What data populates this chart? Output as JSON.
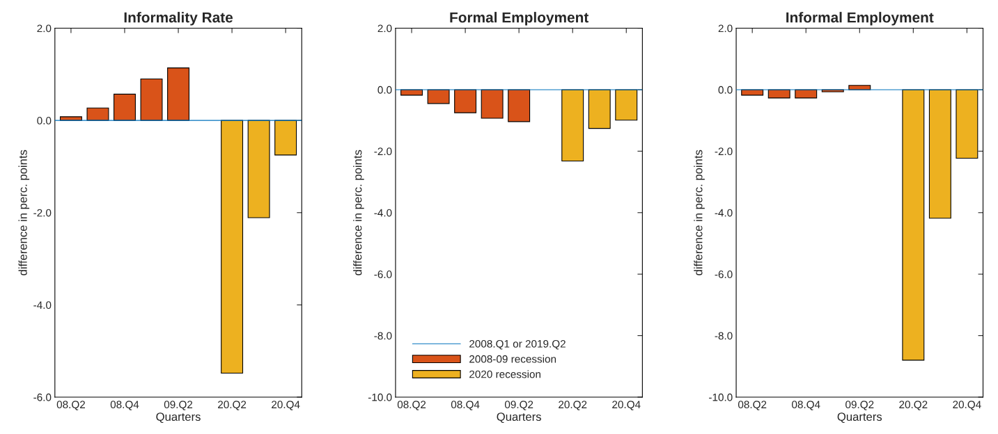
{
  "chart_data": [
    {
      "type": "bar",
      "title": "Informality Rate",
      "xlabel": "Quarters",
      "ylabel": "difference in perc. points",
      "categories": [
        "08.Q2",
        null,
        "08.Q4",
        null,
        "09.Q2",
        null,
        "20.Q2",
        null,
        "20.Q4"
      ],
      "series": [
        {
          "color": "#d95319",
          "values": [
            0.08,
            0.27,
            0.57,
            0.9,
            1.14,
            null,
            null,
            null,
            null
          ]
        },
        {
          "color": "#edb120",
          "values": [
            null,
            null,
            null,
            null,
            null,
            null,
            -5.48,
            -2.11,
            -0.75
          ]
        }
      ],
      "ref_lines": [
        {
          "axis": "y",
          "value": 0,
          "color": "#0072bd"
        }
      ],
      "ylim": [
        -6,
        2
      ],
      "yticks": [
        {
          "value": -6,
          "label": "-6.0"
        },
        {
          "value": -4,
          "label": "-4.0"
        },
        {
          "value": -2,
          "label": "-2.0"
        },
        {
          "value": 0,
          "label": "0.0"
        },
        {
          "value": 2,
          "label": "2.0"
        }
      ]
    },
    {
      "type": "bar",
      "title": "Formal Employment",
      "xlabel": "Quarters",
      "ylabel": "difference in perc. points",
      "categories": [
        "08.Q2",
        null,
        "08.Q4",
        null,
        "09.Q2",
        null,
        "20.Q2",
        null,
        "20.Q4"
      ],
      "series": [
        {
          "name": "2008-09 recession",
          "color": "#d95319",
          "values": [
            -0.18,
            -0.45,
            -0.75,
            -0.93,
            -1.04,
            null,
            null,
            null,
            null
          ]
        },
        {
          "name": "2020 recession",
          "color": "#edb120",
          "values": [
            null,
            null,
            null,
            null,
            null,
            null,
            -2.32,
            -1.26,
            -0.99
          ]
        }
      ],
      "ref_lines": [
        {
          "axis": "y",
          "value": 0,
          "label": "2008.Q1 or 2019.Q2",
          "color": "#0072bd"
        }
      ],
      "legend": "bottom left",
      "ylim": [
        -10,
        2
      ],
      "yticks": [
        {
          "value": -10,
          "label": "-10.0"
        },
        {
          "value": -8,
          "label": "-8.0"
        },
        {
          "value": -6,
          "label": "-6.0"
        },
        {
          "value": -4,
          "label": "-4.0"
        },
        {
          "value": -2,
          "label": "-2.0"
        },
        {
          "value": 0,
          "label": "0.0"
        },
        {
          "value": 2,
          "label": "2.0"
        }
      ]
    },
    {
      "type": "bar",
      "title": "Informal Employment",
      "xlabel": "Quarters",
      "ylabel": "difference in perc. points",
      "categories": [
        "08.Q2",
        null,
        "08.Q4",
        null,
        "09.Q2",
        null,
        "20.Q2",
        null,
        "20.Q4"
      ],
      "series": [
        {
          "color": "#d95319",
          "values": [
            -0.18,
            -0.27,
            -0.27,
            -0.07,
            0.14,
            null,
            null,
            null,
            null
          ]
        },
        {
          "color": "#edb120",
          "values": [
            null,
            null,
            null,
            null,
            null,
            null,
            -8.8,
            -4.18,
            -2.23
          ]
        }
      ],
      "ref_lines": [
        {
          "axis": "y",
          "value": 0,
          "color": "#0072bd"
        }
      ],
      "ylim": [
        -10,
        2
      ],
      "yticks": [
        {
          "value": -10,
          "label": "-10.0"
        },
        {
          "value": -8,
          "label": "-8.0"
        },
        {
          "value": -6,
          "label": "-6.0"
        },
        {
          "value": -4,
          "label": "-4.0"
        },
        {
          "value": -2,
          "label": "-2.0"
        },
        {
          "value": 0,
          "label": "0.0"
        },
        {
          "value": 2,
          "label": "2.0"
        }
      ]
    }
  ]
}
